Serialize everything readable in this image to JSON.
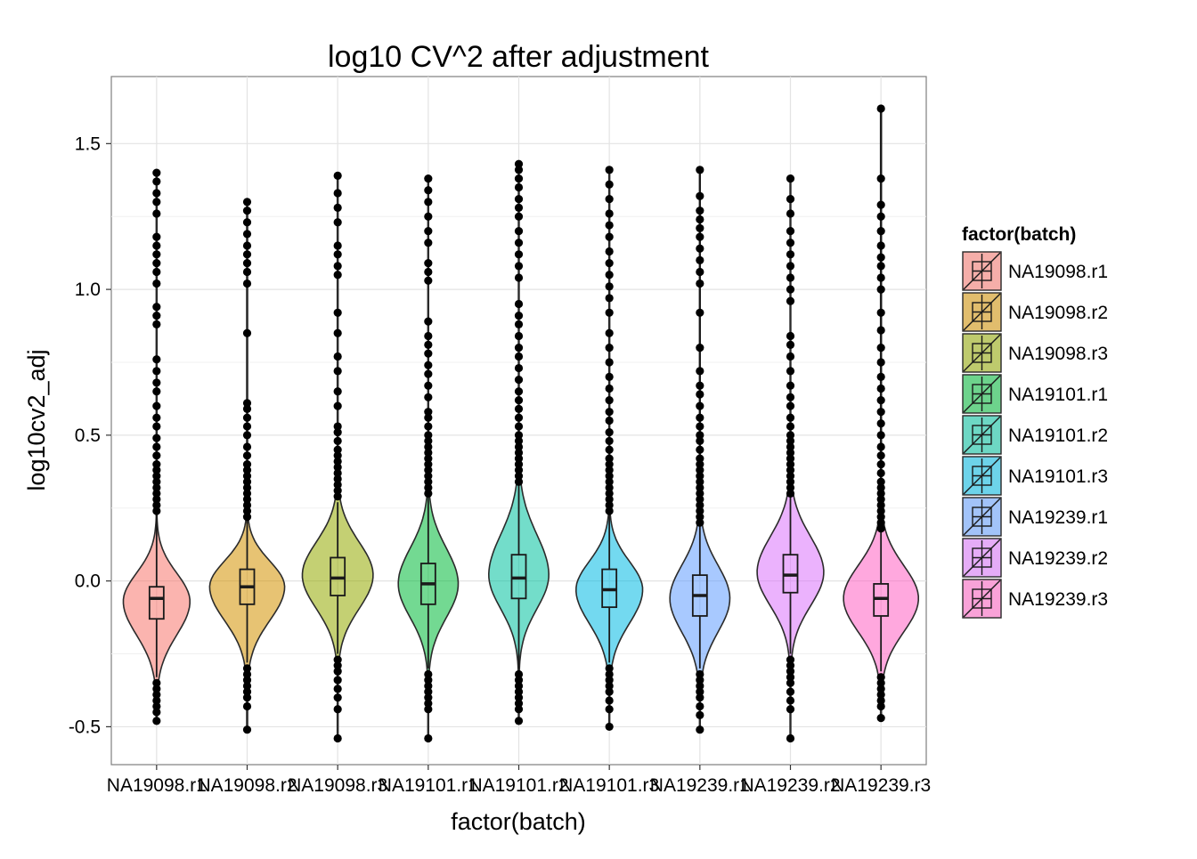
{
  "chart_data": {
    "type": "violin",
    "title": "log10 CV^2 after adjustment",
    "xlabel": "factor(batch)",
    "ylabel": "log10cv2_adj",
    "ylim": [
      -0.63,
      1.73
    ],
    "yticks": [
      -0.5,
      0.0,
      0.5,
      1.0,
      1.5
    ],
    "ytick_labels": [
      "-0.5",
      "0.0",
      "0.5",
      "1.0",
      "1.5"
    ],
    "grid": true,
    "legend": {
      "title": "factor(batch)",
      "placement": "right"
    },
    "categories": [
      "NA19098.r1",
      "NA19098.r2",
      "NA19098.r3",
      "NA19101.r1",
      "NA19101.r2",
      "NA19101.r3",
      "NA19239.r1",
      "NA19239.r2",
      "NA19239.r3"
    ],
    "colors": [
      "#f8766d",
      "#d39200",
      "#93aa00",
      "#00ba38",
      "#00c19f",
      "#00b9e3",
      "#619cff",
      "#db72fb",
      "#ff61c3"
    ],
    "series": [
      {
        "name": "NA19098.r1",
        "median": -0.06,
        "q1": -0.13,
        "q3": -0.02,
        "whisker_low": -0.33,
        "whisker_high": 0.23,
        "peak": -0.07,
        "max_width": 0.8,
        "outliers_high": [
          0.24,
          0.26,
          0.28,
          0.3,
          0.32,
          0.34,
          0.36,
          0.38,
          0.4,
          0.43,
          0.46,
          0.49,
          0.53,
          0.56,
          0.6,
          0.65,
          0.68,
          0.72,
          0.76,
          0.88,
          0.91,
          0.94,
          1.02,
          1.06,
          1.09,
          1.12,
          1.15,
          1.18,
          1.26,
          1.3,
          1.33,
          1.37,
          1.4
        ],
        "outliers_low": [
          -0.35,
          -0.37,
          -0.39,
          -0.41,
          -0.43,
          -0.45,
          -0.48
        ]
      },
      {
        "name": "NA19098.r2",
        "median": -0.02,
        "q1": -0.08,
        "q3": 0.04,
        "whisker_low": -0.28,
        "whisker_high": 0.21,
        "peak": -0.02,
        "max_width": 0.9,
        "outliers_high": [
          0.22,
          0.24,
          0.26,
          0.28,
          0.3,
          0.32,
          0.34,
          0.36,
          0.38,
          0.4,
          0.43,
          0.46,
          0.5,
          0.53,
          0.56,
          0.59,
          0.61,
          0.85,
          1.02,
          1.06,
          1.09,
          1.12,
          1.15,
          1.19,
          1.23,
          1.27,
          1.3
        ],
        "outliers_low": [
          -0.3,
          -0.32,
          -0.34,
          -0.36,
          -0.38,
          -0.4,
          -0.43,
          -0.51
        ]
      },
      {
        "name": "NA19098.r3",
        "median": 0.01,
        "q1": -0.05,
        "q3": 0.08,
        "whisker_low": -0.25,
        "whisker_high": 0.27,
        "peak": 0.02,
        "max_width": 0.85,
        "outliers_high": [
          0.29,
          0.31,
          0.33,
          0.35,
          0.37,
          0.39,
          0.41,
          0.43,
          0.45,
          0.48,
          0.51,
          0.53,
          0.6,
          0.65,
          0.72,
          0.77,
          0.85,
          0.92,
          1.05,
          1.08,
          1.12,
          1.15,
          1.23,
          1.28,
          1.33,
          1.39
        ],
        "outliers_low": [
          -0.27,
          -0.29,
          -0.31,
          -0.34,
          -0.37,
          -0.4,
          -0.44,
          -0.54
        ]
      },
      {
        "name": "NA19101.r1",
        "median": -0.01,
        "q1": -0.08,
        "q3": 0.06,
        "whisker_low": -0.3,
        "whisker_high": 0.29,
        "peak": -0.01,
        "max_width": 0.72,
        "outliers_high": [
          0.3,
          0.32,
          0.34,
          0.36,
          0.38,
          0.4,
          0.42,
          0.44,
          0.46,
          0.48,
          0.5,
          0.53,
          0.56,
          0.58,
          0.63,
          0.67,
          0.71,
          0.74,
          0.78,
          0.81,
          0.84,
          0.89,
          1.03,
          1.06,
          1.09,
          1.16,
          1.2,
          1.25,
          1.3,
          1.34,
          1.38
        ],
        "outliers_low": [
          -0.32,
          -0.34,
          -0.36,
          -0.38,
          -0.4,
          -0.42,
          -0.44,
          -0.54
        ]
      },
      {
        "name": "NA19101.r2",
        "median": 0.01,
        "q1": -0.06,
        "q3": 0.09,
        "whisker_low": -0.3,
        "whisker_high": 0.33,
        "peak": 0.02,
        "max_width": 0.72,
        "outliers_high": [
          0.34,
          0.36,
          0.38,
          0.4,
          0.42,
          0.44,
          0.46,
          0.48,
          0.5,
          0.53,
          0.56,
          0.59,
          0.62,
          0.65,
          0.69,
          0.73,
          0.77,
          0.8,
          0.84,
          0.88,
          0.91,
          0.95,
          1.04,
          1.08,
          1.12,
          1.16,
          1.2,
          1.25,
          1.28,
          1.31,
          1.35,
          1.38,
          1.41,
          1.43
        ],
        "outliers_low": [
          -0.32,
          -0.34,
          -0.36,
          -0.38,
          -0.4,
          -0.42,
          -0.44,
          -0.48
        ]
      },
      {
        "name": "NA19101.r3",
        "median": -0.03,
        "q1": -0.09,
        "q3": 0.04,
        "whisker_low": -0.28,
        "whisker_high": 0.23,
        "peak": -0.03,
        "max_width": 0.8,
        "outliers_high": [
          0.24,
          0.26,
          0.28,
          0.3,
          0.32,
          0.34,
          0.36,
          0.38,
          0.4,
          0.42,
          0.45,
          0.48,
          0.51,
          0.55,
          0.58,
          0.62,
          0.66,
          0.7,
          0.75,
          0.8,
          0.85,
          0.92,
          0.97,
          1.01,
          1.05,
          1.09,
          1.13,
          1.18,
          1.22,
          1.26,
          1.31,
          1.36,
          1.41
        ],
        "outliers_low": [
          -0.3,
          -0.32,
          -0.34,
          -0.36,
          -0.38,
          -0.41,
          -0.44,
          -0.5
        ]
      },
      {
        "name": "NA19239.r1",
        "median": -0.05,
        "q1": -0.12,
        "q3": 0.02,
        "whisker_low": -0.3,
        "whisker_high": 1.41,
        "peak": -0.06,
        "max_width": 0.72,
        "outliers_high": [
          0.2,
          0.22,
          0.24,
          0.26,
          0.28,
          0.3,
          0.32,
          0.34,
          0.36,
          0.38,
          0.4,
          0.42,
          0.45,
          0.48,
          0.5,
          0.53,
          0.56,
          0.6,
          0.64,
          0.67,
          0.72,
          0.8,
          0.92,
          1.02,
          1.06,
          1.1,
          1.14,
          1.18,
          1.21,
          1.24,
          1.27,
          1.32,
          1.41
        ],
        "outliers_low": [
          -0.32,
          -0.34,
          -0.36,
          -0.38,
          -0.4,
          -0.43,
          -0.46,
          -0.51
        ]
      },
      {
        "name": "NA19239.r2",
        "median": 0.02,
        "q1": -0.04,
        "q3": 0.09,
        "whisker_low": -0.25,
        "whisker_high": 0.29,
        "peak": 0.03,
        "max_width": 0.8,
        "outliers_high": [
          0.3,
          0.32,
          0.34,
          0.36,
          0.38,
          0.4,
          0.42,
          0.44,
          0.46,
          0.48,
          0.5,
          0.53,
          0.56,
          0.6,
          0.63,
          0.67,
          0.72,
          0.77,
          0.81,
          0.84,
          0.96,
          1.0,
          1.04,
          1.08,
          1.12,
          1.16,
          1.2,
          1.26,
          1.31,
          1.38
        ],
        "outliers_low": [
          -0.27,
          -0.29,
          -0.31,
          -0.33,
          -0.35,
          -0.38,
          -0.41,
          -0.44,
          -0.54
        ]
      },
      {
        "name": "NA19239.r3",
        "median": -0.06,
        "q1": -0.12,
        "q3": -0.01,
        "whisker_low": -0.31,
        "whisker_high": 1.62,
        "peak": -0.06,
        "max_width": 0.9,
        "outliers_high": [
          0.18,
          0.2,
          0.22,
          0.24,
          0.26,
          0.28,
          0.3,
          0.32,
          0.34,
          0.37,
          0.4,
          0.43,
          0.46,
          0.5,
          0.54,
          0.58,
          0.62,
          0.66,
          0.7,
          0.75,
          0.8,
          0.86,
          0.92,
          1.0,
          1.04,
          1.08,
          1.11,
          1.15,
          1.2,
          1.25,
          1.29,
          1.38,
          1.62
        ],
        "outliers_low": [
          -0.33,
          -0.35,
          -0.37,
          -0.39,
          -0.41,
          -0.43,
          -0.47
        ]
      }
    ]
  }
}
